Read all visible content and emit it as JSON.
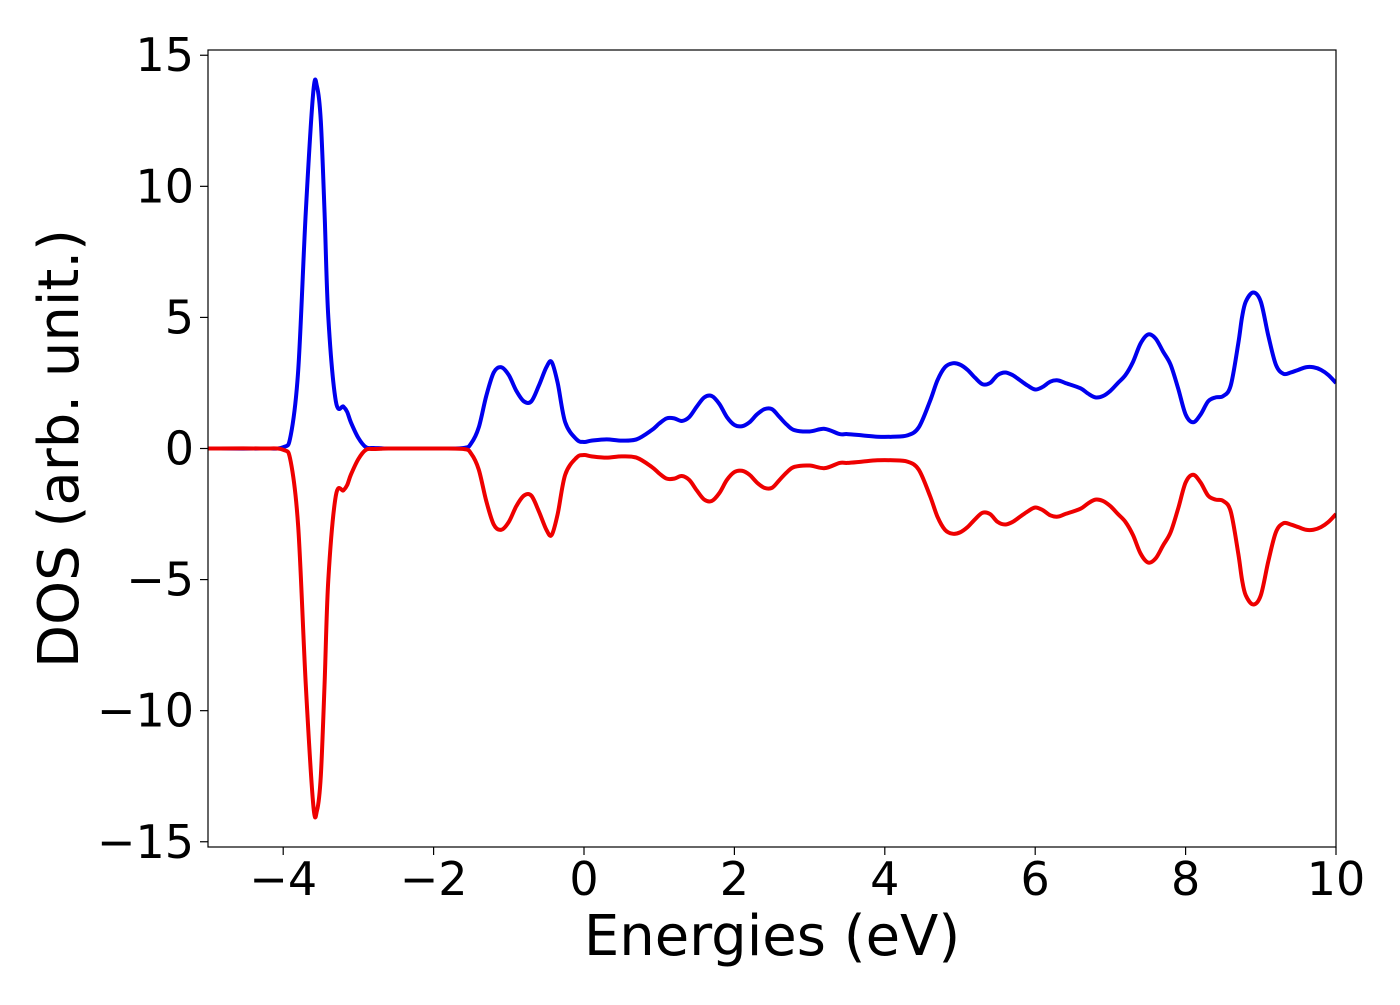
{
  "chart_data": {
    "type": "line",
    "title": "",
    "xlabel": "Energies (eV)",
    "ylabel": "DOS (arb. unit.)",
    "xlim": [
      -5,
      10
    ],
    "ylim": [
      -15.2,
      15.2
    ],
    "xticks": [
      -4,
      -2,
      0,
      2,
      4,
      6,
      8,
      10
    ],
    "xtick_labels": [
      "−4",
      "−2",
      "0",
      "2",
      "4",
      "6",
      "8",
      "10"
    ],
    "yticks": [
      -15,
      -10,
      -5,
      0,
      5,
      10,
      15
    ],
    "ytick_labels": [
      "−15",
      "−10",
      "−5",
      "0",
      "5",
      "10",
      "15"
    ],
    "grid": false,
    "legend": "none",
    "x": [
      -5.0,
      -4.3,
      -4.0,
      -3.9,
      -3.8,
      -3.7,
      -3.6,
      -3.55,
      -3.5,
      -3.45,
      -3.4,
      -3.3,
      -3.2,
      -3.15,
      -3.1,
      -3.0,
      -2.9,
      -2.8,
      -2.7,
      -2.6,
      -2.0,
      -1.6,
      -1.5,
      -1.4,
      -1.3,
      -1.2,
      -1.1,
      -1.0,
      -0.9,
      -0.8,
      -0.7,
      -0.6,
      -0.5,
      -0.43,
      -0.35,
      -0.25,
      -0.1,
      0.0,
      0.1,
      0.3,
      0.5,
      0.7,
      0.9,
      1.0,
      1.1,
      1.2,
      1.3,
      1.4,
      1.5,
      1.6,
      1.7,
      1.8,
      1.9,
      2.0,
      2.1,
      2.2,
      2.3,
      2.4,
      2.5,
      2.6,
      2.7,
      2.8,
      3.0,
      3.2,
      3.4,
      3.5,
      3.7,
      3.9,
      4.1,
      4.3,
      4.45,
      4.6,
      4.7,
      4.8,
      4.9,
      5.0,
      5.1,
      5.2,
      5.3,
      5.4,
      5.5,
      5.6,
      5.7,
      5.8,
      5.9,
      6.0,
      6.1,
      6.2,
      6.3,
      6.4,
      6.6,
      6.7,
      6.8,
      6.9,
      7.0,
      7.1,
      7.2,
      7.3,
      7.4,
      7.5,
      7.6,
      7.7,
      7.8,
      7.9,
      8.0,
      8.1,
      8.2,
      8.3,
      8.4,
      8.5,
      8.6,
      8.7,
      8.75,
      8.8,
      8.9,
      9.0,
      9.1,
      9.2,
      9.3,
      9.4,
      9.5,
      9.6,
      9.7,
      9.8,
      9.9,
      10.0
    ],
    "series": [
      {
        "color": "#0000ee",
        "values": [
          0.0,
          0.0,
          0.05,
          0.5,
          3.0,
          9.0,
          13.6,
          13.8,
          12.5,
          9.0,
          5.0,
          1.8,
          1.6,
          1.4,
          1.0,
          0.4,
          0.05,
          0.02,
          0.01,
          0.0,
          0.0,
          0.02,
          0.2,
          0.8,
          2.0,
          2.9,
          3.1,
          2.8,
          2.2,
          1.8,
          1.8,
          2.4,
          3.1,
          3.3,
          2.5,
          1.0,
          0.35,
          0.25,
          0.3,
          0.35,
          0.3,
          0.35,
          0.7,
          0.95,
          1.15,
          1.15,
          1.05,
          1.2,
          1.6,
          1.95,
          2.0,
          1.7,
          1.2,
          0.9,
          0.85,
          1.0,
          1.3,
          1.5,
          1.5,
          1.2,
          0.9,
          0.7,
          0.65,
          0.75,
          0.55,
          0.55,
          0.5,
          0.45,
          0.45,
          0.5,
          0.8,
          1.8,
          2.6,
          3.1,
          3.25,
          3.2,
          3.0,
          2.7,
          2.45,
          2.5,
          2.8,
          2.9,
          2.8,
          2.6,
          2.4,
          2.25,
          2.35,
          2.55,
          2.6,
          2.5,
          2.3,
          2.1,
          1.95,
          2.0,
          2.2,
          2.5,
          2.8,
          3.3,
          4.0,
          4.35,
          4.2,
          3.7,
          3.2,
          2.3,
          1.3,
          1.0,
          1.3,
          1.8,
          1.95,
          2.0,
          2.4,
          4.0,
          5.0,
          5.6,
          5.95,
          5.6,
          4.3,
          3.2,
          2.85,
          2.9,
          3.0,
          3.1,
          3.1,
          3.0,
          2.8,
          2.5
        ]
      },
      {
        "color": "#ee0000",
        "values": [
          0.0,
          0.0,
          -0.05,
          -0.5,
          -3.0,
          -9.0,
          -13.6,
          -13.8,
          -12.5,
          -9.0,
          -5.0,
          -1.8,
          -1.6,
          -1.4,
          -1.0,
          -0.4,
          -0.05,
          -0.02,
          -0.01,
          0.0,
          0.0,
          -0.02,
          -0.2,
          -0.8,
          -2.0,
          -2.9,
          -3.1,
          -2.8,
          -2.2,
          -1.8,
          -1.8,
          -2.4,
          -3.1,
          -3.3,
          -2.5,
          -1.0,
          -0.35,
          -0.25,
          -0.3,
          -0.35,
          -0.3,
          -0.35,
          -0.7,
          -0.95,
          -1.15,
          -1.15,
          -1.05,
          -1.2,
          -1.6,
          -1.95,
          -2.0,
          -1.7,
          -1.2,
          -0.9,
          -0.85,
          -1.0,
          -1.3,
          -1.5,
          -1.5,
          -1.2,
          -0.9,
          -0.7,
          -0.65,
          -0.75,
          -0.55,
          -0.55,
          -0.5,
          -0.45,
          -0.45,
          -0.5,
          -0.8,
          -1.8,
          -2.6,
          -3.1,
          -3.25,
          -3.2,
          -3.0,
          -2.7,
          -2.45,
          -2.5,
          -2.8,
          -2.9,
          -2.8,
          -2.6,
          -2.4,
          -2.25,
          -2.35,
          -2.55,
          -2.6,
          -2.5,
          -2.3,
          -2.1,
          -1.95,
          -2.0,
          -2.2,
          -2.5,
          -2.8,
          -3.3,
          -4.0,
          -4.35,
          -4.2,
          -3.7,
          -3.2,
          -2.3,
          -1.3,
          -1.0,
          -1.3,
          -1.8,
          -1.95,
          -2.0,
          -2.4,
          -4.0,
          -5.0,
          -5.6,
          -5.95,
          -5.6,
          -4.3,
          -3.2,
          -2.85,
          -2.9,
          -3.0,
          -3.1,
          -3.1,
          -3.0,
          -2.8,
          -2.5
        ]
      }
    ]
  }
}
